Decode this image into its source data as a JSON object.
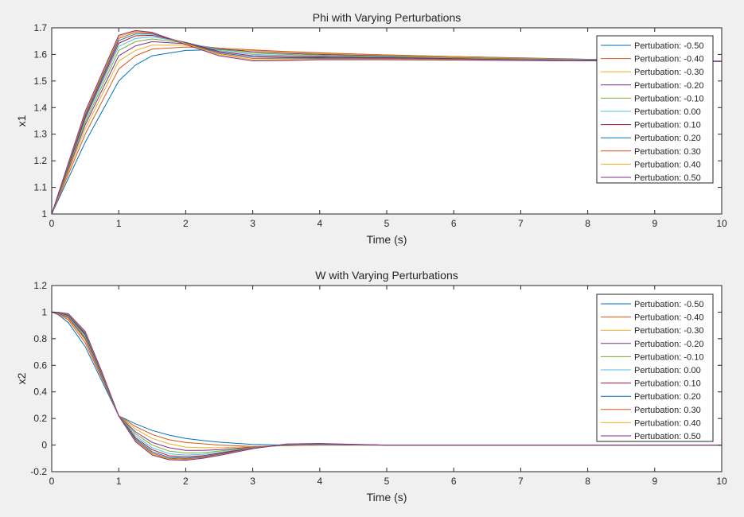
{
  "chart_data": [
    {
      "type": "line",
      "title": "Phi with Varying Perturbations",
      "xlabel": "Time (s)",
      "ylabel": "x1",
      "xlim": [
        0,
        10
      ],
      "ylim": [
        1,
        1.7
      ],
      "xticks": [
        "0",
        "1",
        "2",
        "3",
        "4",
        "5",
        "6",
        "7",
        "8",
        "9",
        "10"
      ],
      "yticks": [
        "1",
        "1.1",
        "1.2",
        "1.3",
        "1.4",
        "1.5",
        "1.6",
        "1.7"
      ],
      "legend_position": "top-right",
      "grid": false,
      "x": [
        0,
        0.5,
        1,
        1.25,
        1.5,
        2,
        2.5,
        3,
        3.5,
        4,
        5,
        6,
        7,
        8,
        9,
        10
      ],
      "series": [
        {
          "name": "Pertubation: -0.50",
          "color": "#0072bd",
          "values": [
            1.0,
            1.27,
            1.5,
            1.56,
            1.595,
            1.615,
            1.618,
            1.615,
            1.61,
            1.605,
            1.598,
            1.592,
            1.587,
            1.582,
            1.578,
            1.575
          ]
        },
        {
          "name": "Pertubation: -0.40",
          "color": "#d95319",
          "values": [
            1.0,
            1.3,
            1.545,
            1.595,
            1.62,
            1.628,
            1.624,
            1.617,
            1.611,
            1.606,
            1.598,
            1.592,
            1.586,
            1.581,
            1.577,
            1.574
          ]
        },
        {
          "name": "Pertubation: -0.30",
          "color": "#edb120",
          "values": [
            1.0,
            1.32,
            1.575,
            1.615,
            1.635,
            1.635,
            1.624,
            1.614,
            1.608,
            1.603,
            1.596,
            1.59,
            1.585,
            1.58,
            1.576,
            1.574
          ]
        },
        {
          "name": "Pertubation: -0.20",
          "color": "#7e2f8e",
          "values": [
            1.0,
            1.335,
            1.595,
            1.632,
            1.648,
            1.64,
            1.622,
            1.61,
            1.604,
            1.6,
            1.594,
            1.588,
            1.583,
            1.579,
            1.576,
            1.574
          ]
        },
        {
          "name": "Pertubation: -0.10",
          "color": "#77ac30",
          "values": [
            1.0,
            1.345,
            1.615,
            1.648,
            1.658,
            1.643,
            1.619,
            1.605,
            1.6,
            1.597,
            1.592,
            1.587,
            1.582,
            1.578,
            1.576,
            1.574
          ]
        },
        {
          "name": "Pertubation: 0.00",
          "color": "#4dbeee",
          "values": [
            1.0,
            1.355,
            1.63,
            1.66,
            1.666,
            1.645,
            1.615,
            1.6,
            1.596,
            1.594,
            1.59,
            1.585,
            1.581,
            1.578,
            1.575,
            1.574
          ]
        },
        {
          "name": "Pertubation: 0.10",
          "color": "#a2142f",
          "values": [
            1.0,
            1.362,
            1.642,
            1.67,
            1.672,
            1.645,
            1.611,
            1.595,
            1.592,
            1.591,
            1.588,
            1.584,
            1.58,
            1.577,
            1.575,
            1.574
          ]
        },
        {
          "name": "Pertubation: 0.20",
          "color": "#0072bd",
          "values": [
            1.0,
            1.37,
            1.652,
            1.677,
            1.677,
            1.644,
            1.607,
            1.59,
            1.588,
            1.588,
            1.586,
            1.582,
            1.579,
            1.577,
            1.575,
            1.574
          ]
        },
        {
          "name": "Pertubation: 0.30",
          "color": "#d95319",
          "values": [
            1.0,
            1.376,
            1.66,
            1.683,
            1.68,
            1.642,
            1.603,
            1.585,
            1.584,
            1.585,
            1.584,
            1.581,
            1.578,
            1.576,
            1.575,
            1.574
          ]
        },
        {
          "name": "Pertubation: 0.40",
          "color": "#edb120",
          "values": [
            1.0,
            1.381,
            1.667,
            1.687,
            1.682,
            1.64,
            1.599,
            1.58,
            1.58,
            1.582,
            1.582,
            1.58,
            1.578,
            1.576,
            1.575,
            1.574
          ]
        },
        {
          "name": "Pertubation: 0.50",
          "color": "#7e2f8e",
          "values": [
            1.0,
            1.386,
            1.672,
            1.69,
            1.683,
            1.637,
            1.595,
            1.576,
            1.577,
            1.58,
            1.58,
            1.579,
            1.577,
            1.576,
            1.575,
            1.574
          ]
        }
      ]
    },
    {
      "type": "line",
      "title": "W with Varying Perturbations",
      "xlabel": "Time (s)",
      "ylabel": "x2",
      "xlim": [
        0,
        10
      ],
      "ylim": [
        -0.2,
        1.2
      ],
      "xticks": [
        "0",
        "1",
        "2",
        "3",
        "4",
        "5",
        "6",
        "7",
        "8",
        "9",
        "10"
      ],
      "yticks": [
        "-0.2",
        "0",
        "0.2",
        "0.4",
        "0.6",
        "0.8",
        "1",
        "1.2"
      ],
      "legend_position": "top-right",
      "grid": false,
      "x": [
        0,
        0.1,
        0.25,
        0.5,
        0.75,
        1,
        1.25,
        1.5,
        1.75,
        2,
        2.25,
        2.5,
        3,
        3.5,
        4,
        5,
        6,
        7,
        8,
        9,
        10
      ],
      "series": [
        {
          "name": "Pertubation: -0.50",
          "color": "#0072bd",
          "values": [
            1.0,
            0.98,
            0.92,
            0.74,
            0.48,
            0.22,
            0.16,
            0.11,
            0.075,
            0.05,
            0.035,
            0.022,
            0.005,
            0.0,
            0.0,
            0.0,
            0.0,
            0.0,
            0.0,
            0.0,
            0.0
          ]
        },
        {
          "name": "Pertubation: -0.40",
          "color": "#d95319",
          "values": [
            1.0,
            0.985,
            0.94,
            0.77,
            0.5,
            0.22,
            0.14,
            0.08,
            0.04,
            0.02,
            0.01,
            0.0,
            -0.01,
            -0.005,
            0.0,
            0.0,
            0.0,
            0.0,
            0.0,
            0.0,
            0.0
          ]
        },
        {
          "name": "Pertubation: -0.30",
          "color": "#edb120",
          "values": [
            1.0,
            0.99,
            0.95,
            0.79,
            0.51,
            0.22,
            0.12,
            0.05,
            0.01,
            -0.015,
            -0.02,
            -0.02,
            -0.012,
            -0.003,
            0.0,
            0.0,
            0.0,
            0.0,
            0.0,
            0.0,
            0.0
          ]
        },
        {
          "name": "Pertubation: -0.20",
          "color": "#7e2f8e",
          "values": [
            1.0,
            0.992,
            0.958,
            0.8,
            0.515,
            0.22,
            0.1,
            0.02,
            -0.02,
            -0.04,
            -0.04,
            -0.035,
            -0.015,
            -0.002,
            0.002,
            0.0,
            0.0,
            0.0,
            0.0,
            0.0,
            0.0
          ]
        },
        {
          "name": "Pertubation: -0.10",
          "color": "#77ac30",
          "values": [
            1.0,
            0.994,
            0.965,
            0.81,
            0.52,
            0.22,
            0.085,
            0.0,
            -0.045,
            -0.06,
            -0.058,
            -0.045,
            -0.018,
            0.0,
            0.004,
            0.0,
            0.0,
            0.0,
            0.0,
            0.0,
            0.0
          ]
        },
        {
          "name": "Pertubation: 0.00",
          "color": "#4dbeee",
          "values": [
            1.0,
            0.995,
            0.97,
            0.82,
            0.525,
            0.22,
            0.07,
            -0.02,
            -0.065,
            -0.075,
            -0.07,
            -0.055,
            -0.02,
            0.002,
            0.006,
            0.0,
            0.0,
            0.0,
            0.0,
            0.0,
            0.0
          ]
        },
        {
          "name": "Pertubation: 0.10",
          "color": "#a2142f",
          "values": [
            1.0,
            0.996,
            0.975,
            0.83,
            0.53,
            0.22,
            0.055,
            -0.035,
            -0.08,
            -0.088,
            -0.08,
            -0.062,
            -0.022,
            0.004,
            0.008,
            0.0,
            0.0,
            0.0,
            0.0,
            0.0,
            0.0
          ]
        },
        {
          "name": "Pertubation: 0.20",
          "color": "#0072bd",
          "values": [
            1.0,
            0.997,
            0.978,
            0.838,
            0.535,
            0.22,
            0.045,
            -0.05,
            -0.092,
            -0.098,
            -0.088,
            -0.068,
            -0.024,
            0.005,
            0.009,
            0.0,
            0.0,
            0.0,
            0.0,
            0.0,
            0.0
          ]
        },
        {
          "name": "Pertubation: 0.30",
          "color": "#d95319",
          "values": [
            1.0,
            0.998,
            0.982,
            0.845,
            0.54,
            0.22,
            0.035,
            -0.06,
            -0.1,
            -0.105,
            -0.093,
            -0.072,
            -0.025,
            0.006,
            0.01,
            0.0,
            0.0,
            0.0,
            0.0,
            0.0,
            0.0
          ]
        },
        {
          "name": "Pertubation: 0.40",
          "color": "#edb120",
          "values": [
            1.0,
            0.998,
            0.985,
            0.85,
            0.545,
            0.22,
            0.03,
            -0.068,
            -0.106,
            -0.11,
            -0.097,
            -0.075,
            -0.026,
            0.007,
            0.011,
            0.0,
            0.0,
            0.0,
            0.0,
            0.0,
            0.0
          ]
        },
        {
          "name": "Pertubation: 0.50",
          "color": "#7e2f8e",
          "values": [
            1.0,
            0.999,
            0.988,
            0.855,
            0.55,
            0.22,
            0.025,
            -0.075,
            -0.11,
            -0.114,
            -0.1,
            -0.078,
            -0.027,
            0.008,
            0.012,
            0.0,
            0.0,
            0.0,
            0.0,
            0.0,
            0.0
          ]
        }
      ]
    }
  ]
}
